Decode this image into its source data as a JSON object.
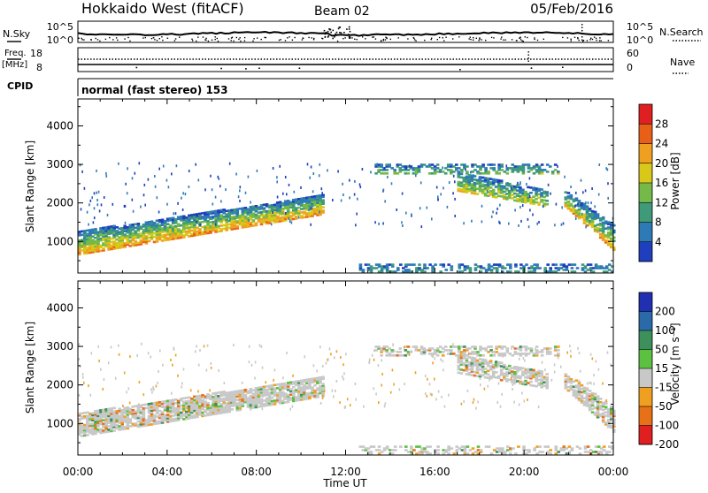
{
  "header": {
    "station": "Hokkaido West (fitACF)",
    "beam": "Beam 02",
    "date": "05/Feb/2016"
  },
  "status_panels": {
    "nsky_label": "N.Sky",
    "nsky_ticks": [
      "10^5",
      "10^0"
    ],
    "nsearch_label": "N.Search",
    "freq_label": "Freq.",
    "freq_unit": "[MHz]",
    "freq_ticks": [
      "18",
      "8"
    ],
    "nave_label": "Nave",
    "nave_ticks": [
      "60",
      "0"
    ],
    "cpid_label": "CPID",
    "cpid_text": "normal (fast stereo) 153"
  },
  "chart_data": [
    {
      "type": "heatmap",
      "name": "power",
      "ylabel": "Slant Range [km]",
      "x_ticks": [
        "00:00",
        "04:00",
        "08:00",
        "12:00",
        "16:00",
        "20:00",
        "00:00"
      ],
      "y_ticks": [
        "1000",
        "2000",
        "3000",
        "4000"
      ],
      "ylim": [
        180,
        4700
      ],
      "xlim_hours": [
        0,
        24
      ],
      "colorbar": {
        "label": "Power [dB]",
        "ticks": [
          "4",
          "8",
          "12",
          "16",
          "20",
          "24",
          "28"
        ],
        "range": [
          0,
          30
        ],
        "colors": [
          "#1f3fbf",
          "#2e7ab6",
          "#3f9a7a",
          "#74b94a",
          "#d8c81a",
          "#f0a020",
          "#e86018",
          "#e02020"
        ]
      },
      "echo_bands": [
        {
          "t0": 0.0,
          "t1": 11.0,
          "lo_start": 650,
          "lo_end": 1700,
          "hi_start": 1250,
          "hi_end": 2200,
          "strength": 0.8
        },
        {
          "t0": 13.3,
          "t1": 21.5,
          "lo_start": 2750,
          "lo_end": 2750,
          "hi_start": 3000,
          "hi_end": 3000,
          "strength": 0.35
        },
        {
          "t0": 17.0,
          "t1": 21.0,
          "lo_start": 2300,
          "lo_end": 1900,
          "hi_start": 2800,
          "hi_end": 2300,
          "strength": 0.6
        },
        {
          "t0": 21.8,
          "t1": 24.0,
          "lo_start": 1900,
          "lo_end": 750,
          "hi_start": 2300,
          "hi_end": 1400,
          "strength": 0.7
        },
        {
          "t0": 12.6,
          "t1": 24.0,
          "lo_start": 200,
          "lo_end": 200,
          "hi_start": 420,
          "hi_end": 420,
          "strength": 0.2
        }
      ]
    },
    {
      "type": "heatmap",
      "name": "velocity",
      "ylabel": "Slant Range [km]",
      "xlabel": "Time UT",
      "x_ticks": [
        "00:00",
        "04:00",
        "08:00",
        "12:00",
        "16:00",
        "20:00",
        "00:00"
      ],
      "y_ticks": [
        "1000",
        "2000",
        "3000",
        "4000"
      ],
      "ylim": [
        180,
        4700
      ],
      "xlim_hours": [
        0,
        24
      ],
      "colorbar": {
        "label": "Velocity [m s⁻¹]",
        "ticks": [
          "200",
          "100",
          "50",
          "15",
          "-15",
          "-50",
          "-100",
          "-200"
        ],
        "range": [
          -250,
          250
        ],
        "colors": [
          "#2030b0",
          "#2a6aa8",
          "#3d8f5c",
          "#5cc040",
          "#c8c8c8",
          "#f0a020",
          "#e87018",
          "#e02020"
        ]
      },
      "echo_bands": [
        {
          "t0": 0.0,
          "t1": 11.0,
          "lo_start": 650,
          "lo_end": 1700,
          "hi_start": 1250,
          "hi_end": 2200,
          "strength": 0.8
        },
        {
          "t0": 13.3,
          "t1": 21.5,
          "lo_start": 2750,
          "lo_end": 2750,
          "hi_start": 3000,
          "hi_end": 3000,
          "strength": 0.35
        },
        {
          "t0": 17.0,
          "t1": 21.0,
          "lo_start": 2300,
          "lo_end": 1900,
          "hi_start": 2800,
          "hi_end": 2300,
          "strength": 0.6
        },
        {
          "t0": 21.8,
          "t1": 24.0,
          "lo_start": 1900,
          "lo_end": 750,
          "hi_start": 2300,
          "hi_end": 1400,
          "strength": 0.7
        },
        {
          "t0": 12.6,
          "t1": 24.0,
          "lo_start": 200,
          "lo_end": 200,
          "hi_start": 420,
          "hi_end": 420,
          "strength": 0.2
        }
      ]
    }
  ]
}
